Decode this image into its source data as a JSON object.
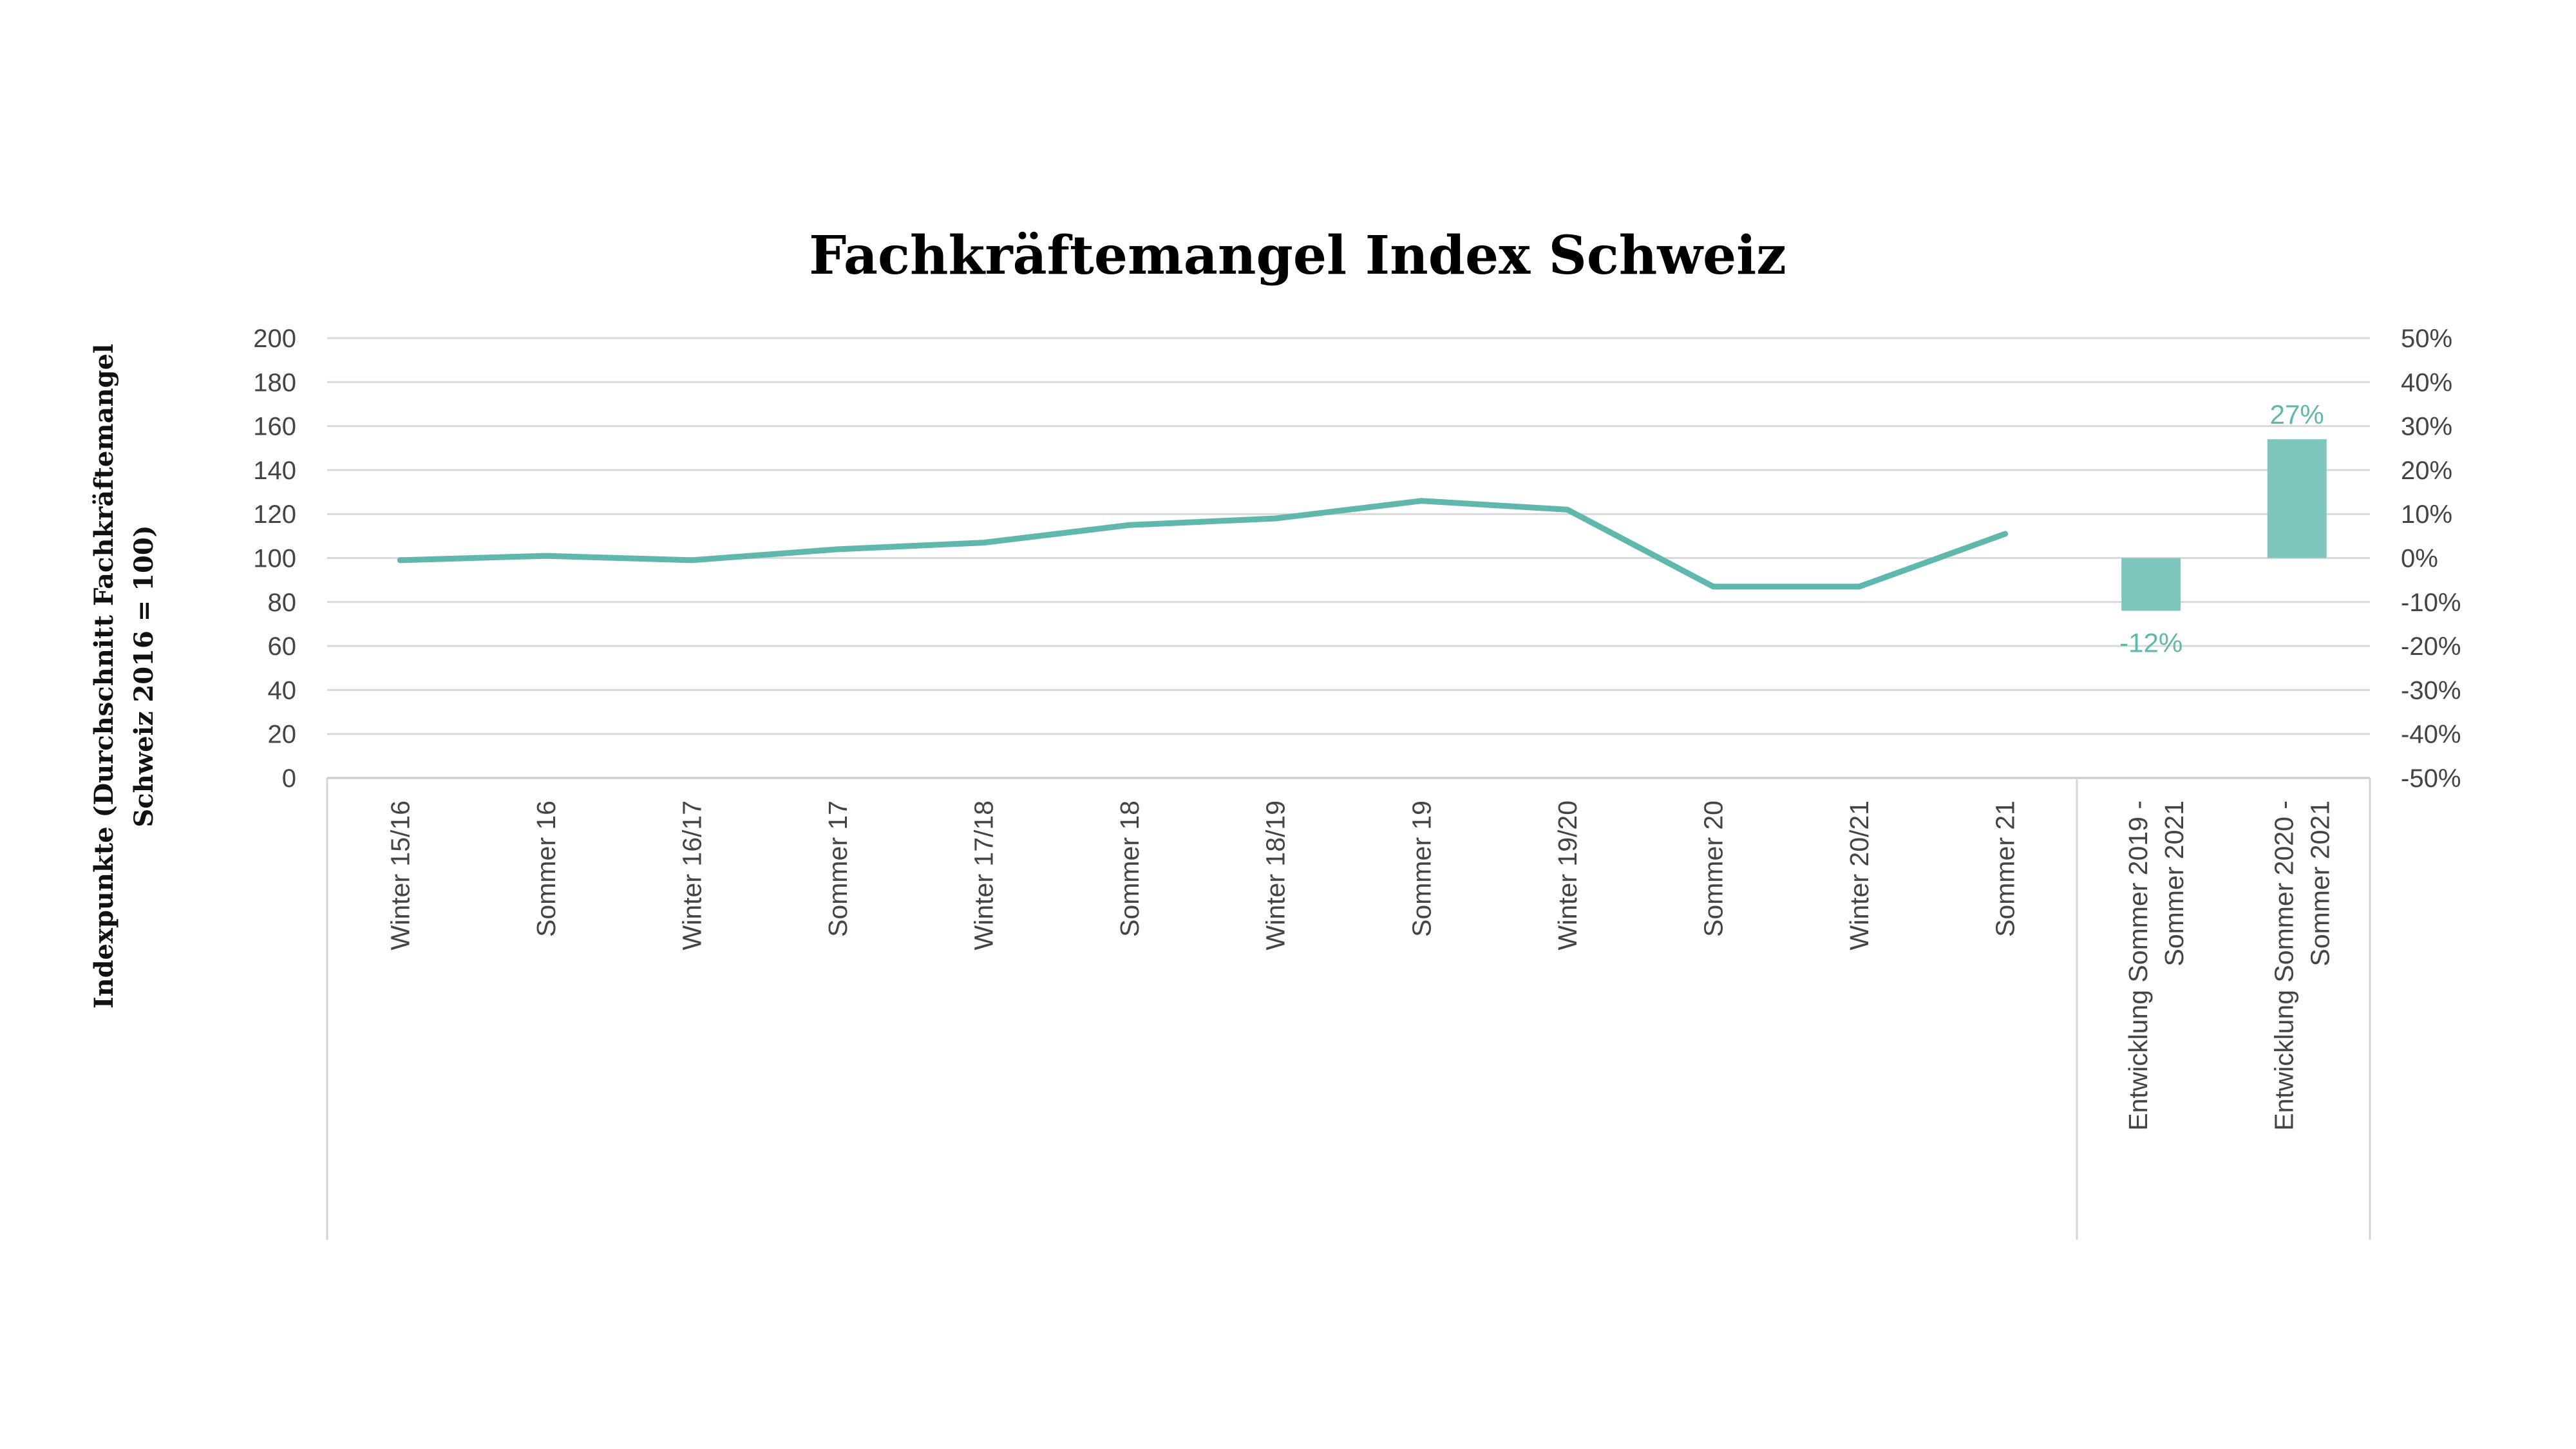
{
  "chart_data": {
    "type": "line",
    "title": "Fachkräftemangel Index Schweiz",
    "ylabel_lines": [
      "Indexpunkte (Durchschnitt Fachkräftemangel",
      "Schweiz 2016 = 100)"
    ],
    "ylim": [
      0,
      200
    ],
    "yticks": [
      0,
      20,
      40,
      60,
      80,
      100,
      120,
      140,
      160,
      180,
      200
    ],
    "y2lim": [
      -50,
      50
    ],
    "y2ticks": [
      "-50%",
      "-40%",
      "-30%",
      "-20%",
      "-10%",
      "0%",
      "10%",
      "20%",
      "30%",
      "40%",
      "50%"
    ],
    "y2tick_values": [
      -50,
      -40,
      -30,
      -20,
      -10,
      0,
      10,
      20,
      30,
      40,
      50
    ],
    "grid": true,
    "color": "#5fb7ad",
    "categories": [
      "Winter 15/16",
      "Sommer 16",
      "Winter 16/17",
      "Sommer 17",
      "Winter 17/18",
      "Sommer 18",
      "Winter 18/19",
      "Sommer 19",
      "Winter 19/20",
      "Sommer 20",
      "Winter 20/21",
      "Sommer 21"
    ],
    "values": [
      99,
      101,
      99,
      104,
      107,
      115,
      118,
      126,
      122,
      87,
      87,
      111
    ],
    "bars": [
      {
        "category_lines": [
          "Entwicklung Sommer 2019 -",
          "Sommer 2021"
        ],
        "value": -12,
        "label": "-12%"
      },
      {
        "category_lines": [
          "Entwicklung Sommer 2020 -",
          "Sommer 2021"
        ],
        "value": 27,
        "label": "27%"
      }
    ]
  }
}
